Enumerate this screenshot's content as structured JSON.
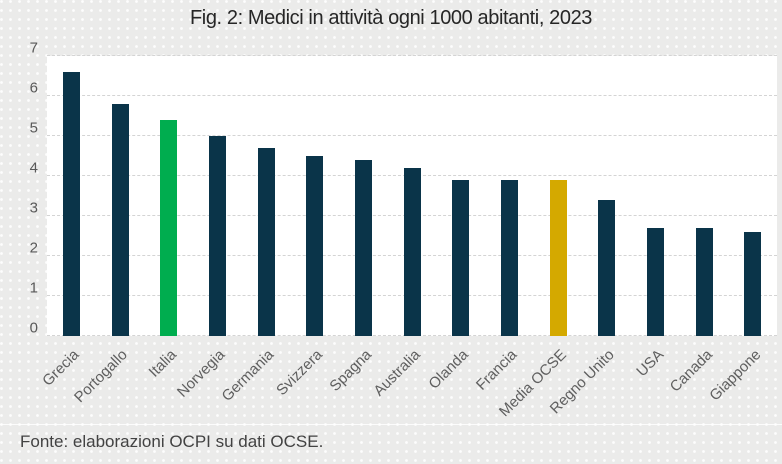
{
  "title": "Fig. 2: Medici in attività ogni 1000 abitanti, 2023",
  "footer": "Fonte: elaborazioni OCPI su dati OCSE.",
  "colors": {
    "navy": "#0a3449",
    "green": "#00ad4f",
    "gold": "#d4a900",
    "gridline": "#d4d4d4",
    "axis_text": "#595959",
    "title_text": "#262626",
    "background": "#ebebea",
    "plot_background": "#ffffff"
  },
  "chart_data": {
    "type": "bar",
    "title": "Fig. 2: Medici in attività ogni 1000 abitanti, 2023",
    "categories": [
      "Grecia",
      "Portogallo",
      "Italia",
      "Norvegia",
      "Germania",
      "Svizzera",
      "Spagna",
      "Australia",
      "Olanda",
      "Francia",
      "Media OCSE",
      "Regno Unito",
      "USA",
      "Canada",
      "Giappone"
    ],
    "values": [
      6.6,
      5.8,
      5.4,
      5.0,
      4.7,
      4.5,
      4.4,
      4.2,
      3.9,
      3.9,
      3.9,
      3.4,
      2.7,
      2.7,
      2.6
    ],
    "bar_colors": [
      "navy",
      "navy",
      "green",
      "navy",
      "navy",
      "navy",
      "navy",
      "navy",
      "navy",
      "navy",
      "gold",
      "navy",
      "navy",
      "navy",
      "navy"
    ],
    "highlights": {
      "Italia": "green",
      "Media OCSE": "gold"
    },
    "xlabel": "",
    "ylabel": "",
    "ylim": [
      0,
      7
    ],
    "y_ticks": [
      0,
      1,
      2,
      3,
      4,
      5,
      6,
      7
    ],
    "grid": "horizontal-dashed",
    "legend": false,
    "source_note": "Fonte: elaborazioni OCPI su dati OCSE."
  }
}
